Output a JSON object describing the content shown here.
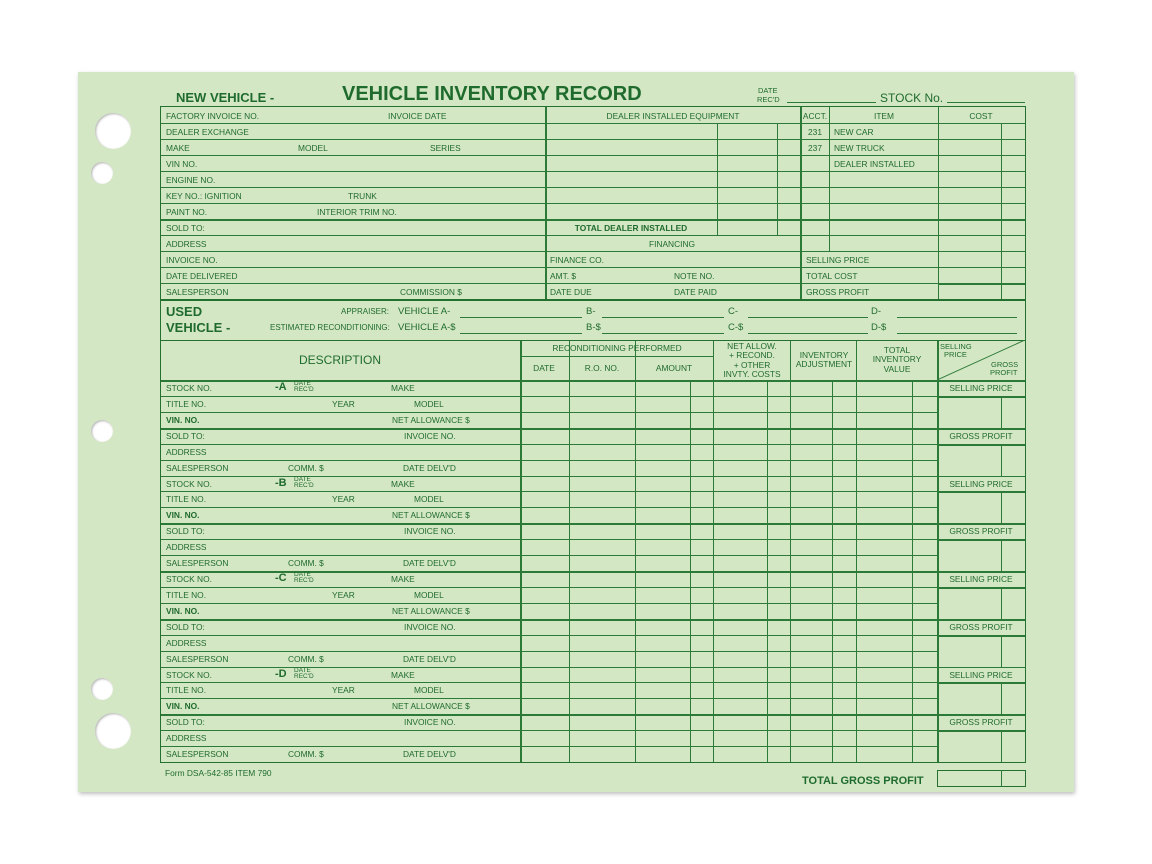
{
  "colors": {
    "paper": "#d4e7c5",
    "ink": "#1f6b2d"
  },
  "header": {
    "new_vehicle": "NEW VEHICLE -",
    "title": "VEHICLE INVENTORY RECORD",
    "date": "DATE",
    "recd": "REC'D",
    "stock_no": "STOCK  No."
  },
  "new_left": {
    "rows": [
      [
        "FACTORY INVOICE NO.",
        "INVOICE DATE"
      ],
      [
        "DEALER EXCHANGE"
      ],
      [
        "MAKE",
        "MODEL",
        "SERIES"
      ],
      [
        "VIN NO."
      ],
      [
        "ENGINE NO."
      ],
      [
        "KEY NO.:  IGNITION",
        "TRUNK"
      ],
      [
        "PAINT NO.",
        "INTERIOR TRIM NO."
      ],
      [
        "SOLD TO:"
      ],
      [
        "ADDRESS"
      ],
      [
        "INVOICE NO."
      ],
      [
        "DATE DELIVERED"
      ],
      [
        "SALESPERSON",
        "COMMISSION $"
      ]
    ]
  },
  "new_mid": {
    "dealer_installed_equipment": "DEALER INSTALLED EQUIPMENT",
    "total_dealer_installed": "TOTAL DEALER INSTALLED",
    "financing": "FINANCING",
    "finance_co": "FINANCE CO.",
    "amt": "AMT. $",
    "note_no": "NOTE NO.",
    "date_due": "DATE DUE",
    "date_paid": "DATE PAID"
  },
  "new_right": {
    "acct": "ACCT.",
    "item": "ITEM",
    "cost": "COST",
    "items": [
      {
        "acct": "231",
        "item": "NEW CAR"
      },
      {
        "acct": "237",
        "item": "NEW TRUCK"
      },
      {
        "acct": "",
        "item": "DEALER INSTALLED"
      }
    ],
    "selling_price": "SELLING PRICE",
    "total_cost": "TOTAL COST",
    "gross_profit": "GROSS PROFIT"
  },
  "used": {
    "used": "USED",
    "vehicle": "VEHICLE -",
    "appraiser": "APPRAISER:",
    "est_recon": "ESTIMATED RECONDITIONING:",
    "appraiser_fields": [
      "VEHICLE A-",
      "B-",
      "C-",
      "D-"
    ],
    "recon_fields": [
      "VEHICLE  A-$",
      "B-$",
      "C-$",
      "D-$"
    ]
  },
  "table_header": {
    "description": "DESCRIPTION",
    "recon_performed": "RECONDITIONING PERFORMED",
    "date": "DATE",
    "ro_no": "R.O. NO.",
    "amount": "AMOUNT",
    "net_allow": [
      "NET ALLOW.",
      "+ RECOND.",
      "+ OTHER",
      "INVTY. COSTS"
    ],
    "inv_adj": [
      "INVENTORY",
      "ADJUSTMENT"
    ],
    "total_inv": [
      "TOTAL",
      "INVENTORY",
      "VALUE"
    ],
    "selling_price": [
      "SELLING",
      "PRICE"
    ],
    "gross_profit": [
      "GROSS",
      "PROFIT"
    ]
  },
  "vehicle_rows": [
    [
      "STOCK NO.",
      "DATE",
      "REC'D",
      "MAKE"
    ],
    [
      "TITLE NO.",
      "YEAR",
      "MODEL"
    ],
    [
      "VIN. NO.",
      "NET ALLOWANCE $"
    ],
    [
      "SOLD TO:",
      "INVOICE NO."
    ],
    [
      "ADDRESS"
    ],
    [
      "SALESPERSON",
      "COMM. $",
      "DATE DELV'D"
    ]
  ],
  "vehicles": [
    "-A",
    "-B",
    "-C",
    "-D"
  ],
  "side": {
    "selling_price": "SELLING PRICE",
    "gross_profit": "GROSS PROFIT"
  },
  "footer": {
    "form": "Form DSA-542-85 ITEM 790",
    "total_gross_profit": "TOTAL GROSS PROFIT"
  }
}
